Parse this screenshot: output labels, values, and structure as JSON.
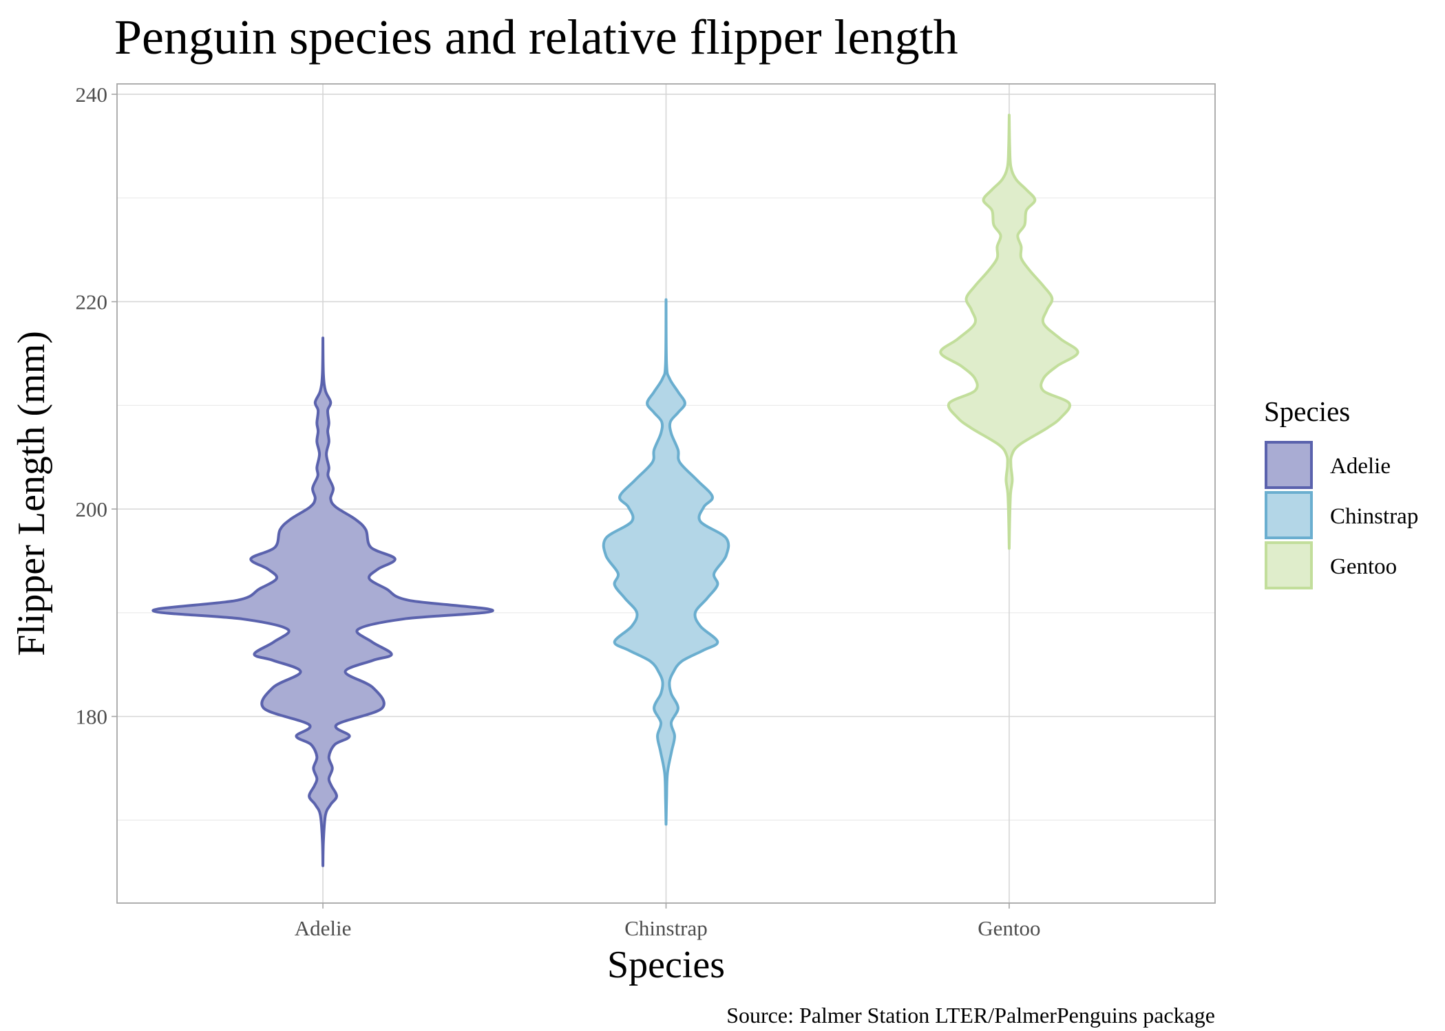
{
  "chart_data": {
    "type": "violin",
    "title": "Penguin species and relative flipper length",
    "xlabel": "Species",
    "ylabel": "Flipper Length (mm)",
    "caption": "Source: Palmer Station LTER/PalmerPenguins package",
    "ylim": [
      162,
      241
    ],
    "yticks": [
      180,
      200,
      220,
      240
    ],
    "ytick_labels": [
      "180",
      "200",
      "220",
      "240"
    ],
    "categories": [
      "Adelie",
      "Chinstrap",
      "Gentoo"
    ],
    "grid": true,
    "legend": {
      "title": "Species",
      "position": "right",
      "entries": [
        "Adelie",
        "Chinstrap",
        "Gentoo"
      ]
    },
    "series": [
      {
        "name": "Adelie",
        "fill": "#a9acd3",
        "stroke": "#5a62ad",
        "profile": [
          [
            165.6,
            0.0
          ],
          [
            168,
            0.003
          ],
          [
            170.5,
            0.015
          ],
          [
            171.5,
            0.045
          ],
          [
            172.3,
            0.08
          ],
          [
            173.3,
            0.05
          ],
          [
            174,
            0.035
          ],
          [
            175,
            0.055
          ],
          [
            176.1,
            0.035
          ],
          [
            177.3,
            0.07
          ],
          [
            178.1,
            0.155
          ],
          [
            179.2,
            0.08
          ],
          [
            180.8,
            0.345
          ],
          [
            182.8,
            0.29
          ],
          [
            184.3,
            0.13
          ],
          [
            185.4,
            0.29
          ],
          [
            186,
            0.4
          ],
          [
            187.2,
            0.285
          ],
          [
            188.4,
            0.205
          ],
          [
            189.4,
            0.47
          ],
          [
            190.2,
            0.99
          ],
          [
            191.2,
            0.5
          ],
          [
            192.3,
            0.37
          ],
          [
            193.3,
            0.27
          ],
          [
            194.2,
            0.32
          ],
          [
            195.2,
            0.42
          ],
          [
            196.3,
            0.28
          ],
          [
            198,
            0.25
          ],
          [
            199,
            0.19
          ],
          [
            200.2,
            0.075
          ],
          [
            201,
            0.045
          ],
          [
            202,
            0.06
          ],
          [
            203.2,
            0.03
          ],
          [
            204,
            0.035
          ],
          [
            205.3,
            0.02
          ],
          [
            206.5,
            0.035
          ],
          [
            207.5,
            0.028
          ],
          [
            208.3,
            0.035
          ],
          [
            209.5,
            0.028
          ],
          [
            210.3,
            0.045
          ],
          [
            211.4,
            0.015
          ],
          [
            213,
            0.003
          ],
          [
            216.5,
            0.0
          ]
        ]
      },
      {
        "name": "Chinstrap",
        "fill": "#b3d6e7",
        "stroke": "#6aaecf",
        "profile": [
          [
            169.6,
            0.0
          ],
          [
            172,
            0.003
          ],
          [
            174.5,
            0.008
          ],
          [
            176.6,
            0.032
          ],
          [
            178.1,
            0.05
          ],
          [
            179.4,
            0.03
          ],
          [
            180.8,
            0.07
          ],
          [
            182.2,
            0.03
          ],
          [
            183.3,
            0.02
          ],
          [
            184.2,
            0.04
          ],
          [
            185.3,
            0.09
          ],
          [
            186.4,
            0.22
          ],
          [
            187.2,
            0.3
          ],
          [
            188.7,
            0.2
          ],
          [
            190,
            0.17
          ],
          [
            191.4,
            0.24
          ],
          [
            192.7,
            0.3
          ],
          [
            193.8,
            0.28
          ],
          [
            195.5,
            0.35
          ],
          [
            197.2,
            0.35
          ],
          [
            198.8,
            0.2
          ],
          [
            200.2,
            0.22
          ],
          [
            201.2,
            0.27
          ],
          [
            202.8,
            0.18
          ],
          [
            204.5,
            0.08
          ],
          [
            205.7,
            0.07
          ],
          [
            207.3,
            0.03
          ],
          [
            208.4,
            0.025
          ],
          [
            209.3,
            0.07
          ],
          [
            210.2,
            0.11
          ],
          [
            211.3,
            0.07
          ],
          [
            212.6,
            0.02
          ],
          [
            214,
            0.003
          ],
          [
            220.2,
            0.0
          ]
        ]
      },
      {
        "name": "Gentoo",
        "fill": "#dfedcb",
        "stroke": "#c2de9b",
        "profile": [
          [
            196.2,
            0.0
          ],
          [
            199,
            0.003
          ],
          [
            201.5,
            0.008
          ],
          [
            202.8,
            0.018
          ],
          [
            204.2,
            0.01
          ],
          [
            205.2,
            0.015
          ],
          [
            206.2,
            0.06
          ],
          [
            207.8,
            0.22
          ],
          [
            208.8,
            0.3
          ],
          [
            210.2,
            0.35
          ],
          [
            211.4,
            0.2
          ],
          [
            212.6,
            0.2
          ],
          [
            213.8,
            0.28
          ],
          [
            215.1,
            0.4
          ],
          [
            216.4,
            0.3
          ],
          [
            217.9,
            0.2
          ],
          [
            219.2,
            0.22
          ],
          [
            220.3,
            0.25
          ],
          [
            221.5,
            0.2
          ],
          [
            223,
            0.12
          ],
          [
            224.2,
            0.07
          ],
          [
            225.3,
            0.07
          ],
          [
            226.4,
            0.05
          ],
          [
            227.4,
            0.09
          ],
          [
            228.8,
            0.1
          ],
          [
            229.8,
            0.15
          ],
          [
            230.8,
            0.1
          ],
          [
            231.8,
            0.04
          ],
          [
            233,
            0.01
          ],
          [
            235,
            0.003
          ],
          [
            238,
            0.0
          ]
        ]
      }
    ]
  }
}
